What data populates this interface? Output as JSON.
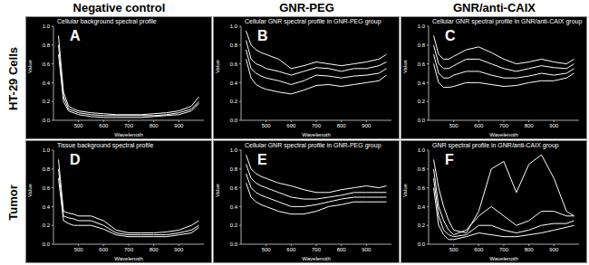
{
  "column_headers": [
    "Negative control",
    "GNR-PEG",
    "GNR/anti-CAIX"
  ],
  "row_labels": [
    "HT-29 Cells",
    "Tumor"
  ],
  "chart_data": [
    {
      "type": "line",
      "panel_label": "A",
      "title": "Cellular background spectral profile",
      "x_label": "Wavelength",
      "y_label": "Value",
      "color": "#ffffff",
      "xlim": [
        400,
        1000
      ],
      "ylim": [
        0,
        1
      ],
      "xticks": [
        500,
        600,
        700,
        800,
        900
      ],
      "yticks": [
        {
          "value": 0,
          "label": "0.0"
        },
        {
          "value": 0.2,
          "label": "0.2"
        },
        {
          "value": 0.4,
          "label": "0.4"
        },
        {
          "value": 0.6,
          "label": "0.6"
        },
        {
          "value": 0.8,
          "label": "0.8"
        },
        {
          "value": 1,
          "label": "1.0"
        }
      ],
      "x": [
        420,
        440,
        460,
        480,
        500,
        550,
        600,
        650,
        700,
        750,
        800,
        850,
        900,
        950,
        980
      ],
      "series": [
        {
          "values": [
            0.9,
            0.3,
            0.15,
            0.12,
            0.1,
            0.08,
            0.07,
            0.06,
            0.06,
            0.06,
            0.07,
            0.08,
            0.1,
            0.15,
            0.25
          ]
        },
        {
          "values": [
            0.8,
            0.25,
            0.12,
            0.1,
            0.08,
            0.06,
            0.05,
            0.05,
            0.05,
            0.05,
            0.05,
            0.06,
            0.08,
            0.12,
            0.2
          ]
        },
        {
          "values": [
            0.7,
            0.2,
            0.1,
            0.08,
            0.06,
            0.04,
            0.03,
            0.03,
            0.03,
            0.03,
            0.04,
            0.05,
            0.06,
            0.1,
            0.18
          ]
        }
      ]
    },
    {
      "type": "line",
      "panel_label": "B",
      "title": "Cellular GNR spectral profile in GNR-PEG group",
      "x_label": "Wavelength",
      "y_label": "Value",
      "color": "#ffffff",
      "xlim": [
        400,
        1000
      ],
      "ylim": [
        0,
        1
      ],
      "xticks": [
        500,
        600,
        700,
        800,
        900
      ],
      "yticks": [
        {
          "value": 0,
          "label": "0.0"
        },
        {
          "value": 0.2,
          "label": "0.2"
        },
        {
          "value": 0.4,
          "label": "0.4"
        },
        {
          "value": 0.6,
          "label": "0.6"
        },
        {
          "value": 0.8,
          "label": "0.8"
        },
        {
          "value": 1,
          "label": "1.0"
        }
      ],
      "x": [
        420,
        440,
        460,
        480,
        500,
        550,
        600,
        650,
        700,
        750,
        800,
        850,
        900,
        950,
        980
      ],
      "series": [
        {
          "values": [
            0.95,
            0.8,
            0.75,
            0.72,
            0.7,
            0.65,
            0.55,
            0.58,
            0.62,
            0.6,
            0.58,
            0.6,
            0.62,
            0.65,
            0.7
          ]
        },
        {
          "values": [
            0.85,
            0.65,
            0.6,
            0.58,
            0.55,
            0.52,
            0.48,
            0.52,
            0.56,
            0.55,
            0.52,
            0.55,
            0.55,
            0.58,
            0.62
          ]
        },
        {
          "values": [
            0.75,
            0.55,
            0.5,
            0.47,
            0.45,
            0.42,
            0.38,
            0.42,
            0.48,
            0.47,
            0.45,
            0.47,
            0.48,
            0.5,
            0.55
          ]
        },
        {
          "values": [
            0.65,
            0.45,
            0.38,
            0.35,
            0.33,
            0.3,
            0.28,
            0.32,
            0.37,
            0.38,
            0.36,
            0.38,
            0.4,
            0.42,
            0.48
          ]
        }
      ]
    },
    {
      "type": "line",
      "panel_label": "C",
      "title": "Cellular GNR spectral profile in GNR/anti-CAIX group",
      "x_label": "Wavelength",
      "y_label": "Value",
      "color": "#ffffff",
      "xlim": [
        400,
        1000
      ],
      "ylim": [
        0,
        1
      ],
      "xticks": [
        500,
        600,
        700,
        800,
        900
      ],
      "yticks": [
        {
          "value": 0,
          "label": "0.0"
        },
        {
          "value": 0.2,
          "label": "0.2"
        },
        {
          "value": 0.4,
          "label": "0.4"
        },
        {
          "value": 0.6,
          "label": "0.6"
        },
        {
          "value": 0.8,
          "label": "0.8"
        },
        {
          "value": 1,
          "label": "1.0"
        }
      ],
      "x": [
        420,
        440,
        460,
        480,
        500,
        550,
        600,
        650,
        700,
        750,
        800,
        850,
        900,
        950,
        980
      ],
      "series": [
        {
          "values": [
            0.9,
            0.7,
            0.65,
            0.65,
            0.68,
            0.75,
            0.78,
            0.72,
            0.65,
            0.6,
            0.62,
            0.65,
            0.62,
            0.6,
            0.65
          ]
        },
        {
          "values": [
            0.8,
            0.6,
            0.55,
            0.55,
            0.58,
            0.65,
            0.65,
            0.6,
            0.55,
            0.52,
            0.55,
            0.58,
            0.56,
            0.55,
            0.6
          ]
        },
        {
          "values": [
            0.7,
            0.5,
            0.45,
            0.45,
            0.48,
            0.52,
            0.52,
            0.48,
            0.45,
            0.45,
            0.47,
            0.5,
            0.48,
            0.5,
            0.55
          ]
        },
        {
          "values": [
            0.6,
            0.4,
            0.35,
            0.35,
            0.36,
            0.4,
            0.4,
            0.38,
            0.36,
            0.37,
            0.4,
            0.42,
            0.42,
            0.45,
            0.5
          ]
        }
      ]
    },
    {
      "type": "line",
      "panel_label": "D",
      "title": "Tissue background spectral profile",
      "x_label": "Wavelength",
      "y_label": "Value",
      "color": "#ffffff",
      "xlim": [
        400,
        1000
      ],
      "ylim": [
        0,
        1
      ],
      "xticks": [
        500,
        600,
        700,
        800,
        900
      ],
      "yticks": [
        {
          "value": 0,
          "label": "0.0"
        },
        {
          "value": 0.2,
          "label": "0.2"
        },
        {
          "value": 0.4,
          "label": "0.4"
        },
        {
          "value": 0.6,
          "label": "0.6"
        },
        {
          "value": 0.8,
          "label": "0.8"
        },
        {
          "value": 1,
          "label": "1.0"
        }
      ],
      "x": [
        420,
        440,
        460,
        480,
        500,
        550,
        600,
        650,
        700,
        750,
        800,
        850,
        900,
        950,
        980
      ],
      "series": [
        {
          "values": [
            0.9,
            0.35,
            0.33,
            0.32,
            0.3,
            0.3,
            0.25,
            0.15,
            0.12,
            0.12,
            0.12,
            0.13,
            0.15,
            0.2,
            0.25
          ]
        },
        {
          "values": [
            0.8,
            0.3,
            0.28,
            0.27,
            0.25,
            0.25,
            0.2,
            0.12,
            0.1,
            0.1,
            0.1,
            0.1,
            0.12,
            0.15,
            0.2
          ]
        },
        {
          "values": [
            0.7,
            0.25,
            0.22,
            0.2,
            0.2,
            0.2,
            0.16,
            0.1,
            0.08,
            0.08,
            0.08,
            0.08,
            0.1,
            0.12,
            0.18
          ]
        }
      ]
    },
    {
      "type": "line",
      "panel_label": "E",
      "title": "Cellular GNR spectral profile in GNR-PEG group",
      "x_label": "Wavelength",
      "y_label": "Value",
      "color": "#ffffff",
      "xlim": [
        400,
        1000
      ],
      "ylim": [
        0,
        1
      ],
      "xticks": [
        500,
        600,
        700,
        800,
        900
      ],
      "yticks": [
        {
          "value": 0,
          "label": "0.0"
        },
        {
          "value": 0.2,
          "label": "0.2"
        },
        {
          "value": 0.4,
          "label": "0.4"
        },
        {
          "value": 0.6,
          "label": "0.6"
        },
        {
          "value": 0.8,
          "label": "0.8"
        },
        {
          "value": 1,
          "label": "1.0"
        }
      ],
      "x": [
        420,
        440,
        460,
        480,
        500,
        550,
        600,
        650,
        700,
        750,
        800,
        850,
        900,
        950,
        980
      ],
      "series": [
        {
          "values": [
            0.95,
            0.8,
            0.75,
            0.72,
            0.7,
            0.65,
            0.62,
            0.58,
            0.55,
            0.55,
            0.58,
            0.6,
            0.62,
            0.6,
            0.62
          ]
        },
        {
          "values": [
            0.85,
            0.7,
            0.65,
            0.62,
            0.6,
            0.55,
            0.5,
            0.48,
            0.48,
            0.5,
            0.52,
            0.55,
            0.55,
            0.55,
            0.55
          ]
        },
        {
          "values": [
            0.75,
            0.6,
            0.55,
            0.52,
            0.5,
            0.45,
            0.4,
            0.4,
            0.42,
            0.45,
            0.48,
            0.5,
            0.5,
            0.5,
            0.5
          ]
        },
        {
          "values": [
            0.65,
            0.5,
            0.45,
            0.42,
            0.4,
            0.35,
            0.32,
            0.32,
            0.35,
            0.4,
            0.42,
            0.45,
            0.45,
            0.45,
            0.45
          ]
        }
      ]
    },
    {
      "type": "line",
      "panel_label": "F",
      "title": "GNR spectral profile in GNR/anti-CAIX group",
      "x_label": "Wavelength",
      "y_label": "Value",
      "color": "#ffffff",
      "xlim": [
        400,
        1000
      ],
      "ylim": [
        0,
        1
      ],
      "xticks": [
        500,
        600,
        700,
        800,
        900
      ],
      "yticks": [
        {
          "value": 0,
          "label": "0.0"
        },
        {
          "value": 0.2,
          "label": "0.2"
        },
        {
          "value": 0.4,
          "label": "0.4"
        },
        {
          "value": 0.6,
          "label": "0.6"
        },
        {
          "value": 0.8,
          "label": "0.8"
        },
        {
          "value": 1,
          "label": "1.0"
        }
      ],
      "x": [
        420,
        440,
        460,
        480,
        500,
        550,
        600,
        650,
        700,
        750,
        800,
        850,
        900,
        950,
        980
      ],
      "series": [
        {
          "values": [
            0.9,
            0.6,
            0.4,
            0.25,
            0.15,
            0.12,
            0.35,
            0.8,
            0.88,
            0.55,
            0.85,
            0.95,
            0.7,
            0.35,
            0.3
          ]
        },
        {
          "values": [
            0.8,
            0.4,
            0.25,
            0.15,
            0.1,
            0.15,
            0.3,
            0.4,
            0.3,
            0.2,
            0.25,
            0.35,
            0.35,
            0.3,
            0.3
          ]
        },
        {
          "values": [
            0.7,
            0.3,
            0.15,
            0.1,
            0.08,
            0.1,
            0.2,
            0.2,
            0.15,
            0.12,
            0.15,
            0.2,
            0.22,
            0.22,
            0.25
          ]
        },
        {
          "values": [
            0.6,
            0.2,
            0.1,
            0.05,
            0.05,
            0.08,
            0.12,
            0.1,
            0.08,
            0.08,
            0.1,
            0.12,
            0.15,
            0.18,
            0.2
          ]
        }
      ]
    }
  ]
}
